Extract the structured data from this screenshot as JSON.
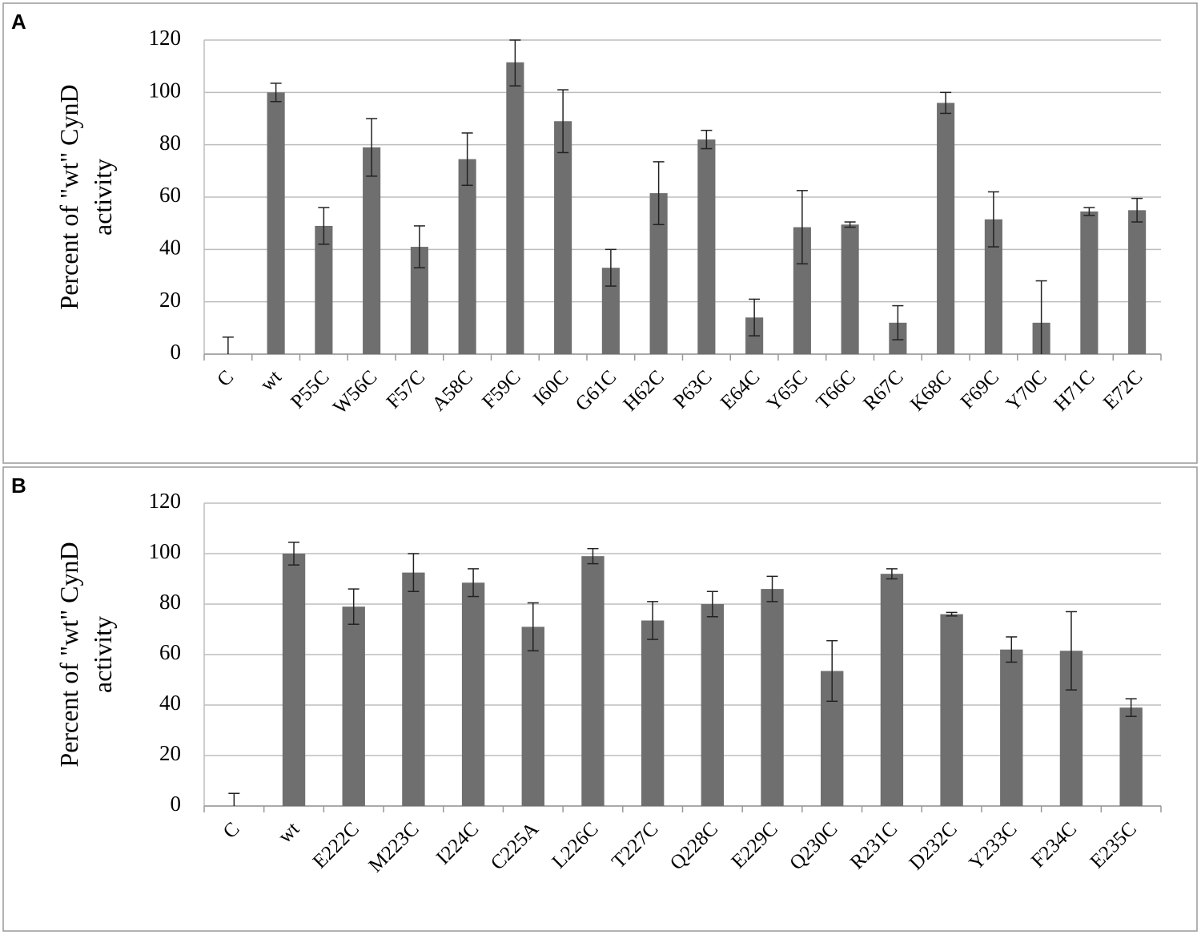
{
  "chart_data": [
    {
      "type": "bar",
      "panel_label": "A",
      "ylabel": [
        "Percent of \"wt\" CynD",
        "activity"
      ],
      "categories": [
        "C",
        "wt",
        "P55C",
        "W56C",
        "F57C",
        "A58C",
        "F59C",
        "I60C",
        "G61C",
        "H62C",
        "P63C",
        "E64C",
        "Y65C",
        "T66C",
        "R67C",
        "K68C",
        "F69C",
        "Y70C",
        "H71C",
        "E72C"
      ],
      "values": [
        0,
        100,
        49,
        79,
        41,
        74.5,
        111.5,
        89,
        33,
        61.5,
        82,
        14,
        48.5,
        49.5,
        12,
        96,
        51.5,
        12,
        54.5,
        55
      ],
      "errors": [
        6.5,
        3.5,
        7,
        11,
        8,
        10,
        9,
        12,
        7,
        12,
        3.5,
        7,
        14,
        1,
        6.5,
        4,
        10.5,
        16,
        1.5,
        4.5
      ],
      "color": "#6f6f6f",
      "ylim": [
        0,
        120
      ],
      "yticks": [
        0,
        20,
        40,
        60,
        80,
        100,
        120
      ],
      "grid": true
    },
    {
      "type": "bar",
      "panel_label": "B",
      "ylabel": [
        "Percent of \"wt\" CynD",
        "activity"
      ],
      "categories": [
        "C",
        "wt",
        "E222C",
        "M223C",
        "I224C",
        "C225A",
        "L226C",
        "T227C",
        "Q228C",
        "E229C",
        "Q230C",
        "R231C",
        "D232C",
        "Y233C",
        "F234C",
        "E235C"
      ],
      "values": [
        0,
        100,
        79,
        92.5,
        88.5,
        71,
        99,
        73.5,
        80,
        86,
        53.5,
        92,
        76,
        62,
        61.5,
        39
      ],
      "errors": [
        5,
        4.5,
        7,
        7.5,
        5.5,
        9.5,
        3,
        7.5,
        5,
        5,
        12,
        2,
        0.7,
        5,
        15.5,
        3.5
      ],
      "color": "#6f6f6f",
      "ylim": [
        0,
        120
      ],
      "yticks": [
        0,
        20,
        40,
        60,
        80,
        100,
        120
      ],
      "grid": true
    }
  ]
}
